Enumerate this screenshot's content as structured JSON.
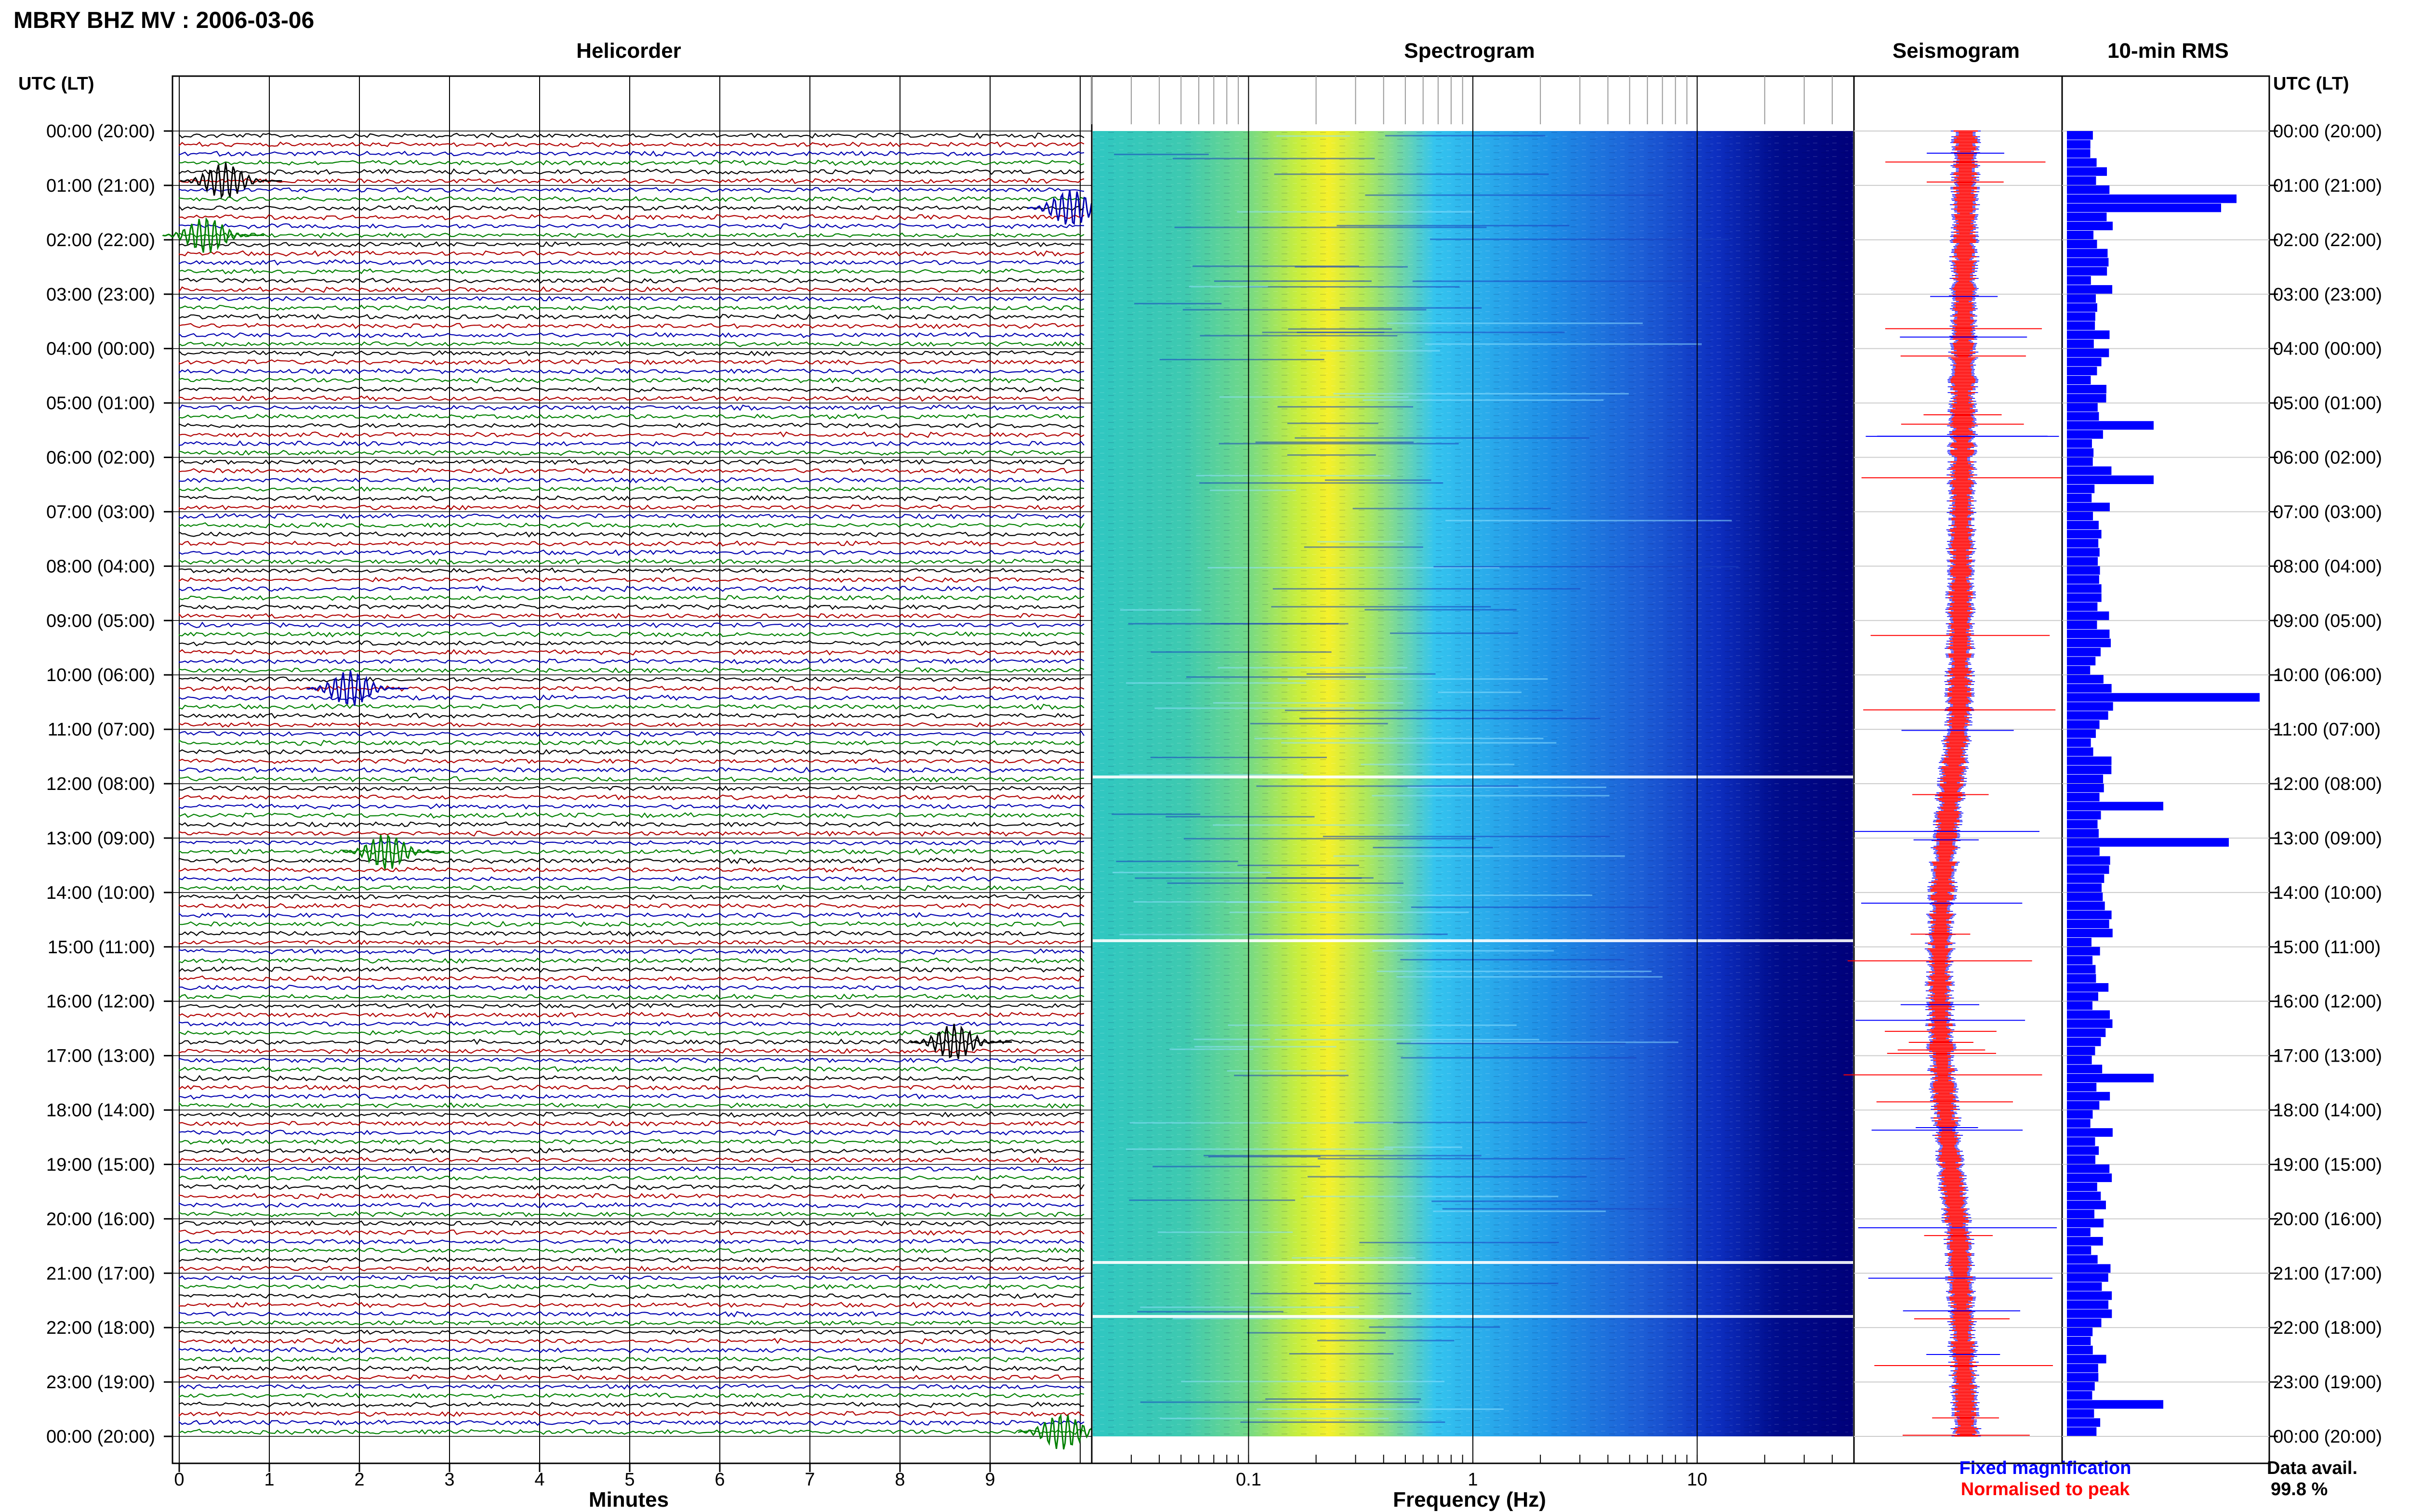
{
  "title": "MBRY BHZ MV : 2006-03-06",
  "panels": {
    "helicorder": "Helicorder",
    "spectrogram": "Spectrogram",
    "seismogram": "Seismogram",
    "rms": "10-min RMS"
  },
  "axis_header_left": "UTC (LT)",
  "axis_header_right": "UTC (LT)",
  "time_labels": [
    "00:00 (20:00)",
    "01:00 (21:00)",
    "02:00 (22:00)",
    "03:00 (23:00)",
    "04:00 (00:00)",
    "05:00 (01:00)",
    "06:00 (02:00)",
    "07:00 (03:00)",
    "08:00 (04:00)",
    "09:00 (05:00)",
    "10:00 (06:00)",
    "11:00 (07:00)",
    "12:00 (08:00)",
    "13:00 (09:00)",
    "14:00 (10:00)",
    "15:00 (11:00)",
    "16:00 (12:00)",
    "17:00 (13:00)",
    "18:00 (14:00)",
    "19:00 (15:00)",
    "20:00 (16:00)",
    "21:00 (17:00)",
    "22:00 (18:00)",
    "23:00 (19:00)",
    "00:00 (20:00)"
  ],
  "minutes_ticks": [
    "0",
    "1",
    "2",
    "3",
    "4",
    "5",
    "6",
    "7",
    "8",
    "9"
  ],
  "minutes_label": "Minutes",
  "freq_ticks": [
    "0.1",
    "1",
    "10"
  ],
  "freq_label": "Frequency (Hz)",
  "legend": {
    "fixed": "Fixed magnification",
    "normalised": "Normalised to peak",
    "fixed_color": "#0000ff",
    "normalised_color": "#ff0000"
  },
  "data_avail": {
    "label": "Data avail.",
    "value": "99.8 %"
  },
  "trace_colors": [
    "#000000",
    "#b00000",
    "#0000b0",
    "#008000"
  ],
  "chart_data": [
    {
      "type": "line",
      "panel": "helicorder",
      "xlabel": "Minutes",
      "xlim": [
        0,
        10
      ],
      "rows_per_hour": 6,
      "rows_count": 144,
      "events": [
        {
          "time": "00:50",
          "minute": 0.5,
          "color": "black",
          "amplitude": "large"
        },
        {
          "time": "01:20",
          "minute": 9.9,
          "color": "blue",
          "amplitude": "large"
        },
        {
          "time": "01:50",
          "minute": 0.3,
          "color": "green",
          "amplitude": "large"
        },
        {
          "time": "10:10",
          "minute": 1.9,
          "color": "blue",
          "amplitude": "large"
        },
        {
          "time": "13:10",
          "minute": 2.3,
          "color": "green",
          "amplitude": "large"
        },
        {
          "time": "16:40",
          "minute": 8.6,
          "color": "black",
          "amplitude": "large"
        },
        {
          "time": "23:50",
          "minute": 9.8,
          "color": "green",
          "amplitude": "large"
        }
      ]
    },
    {
      "type": "heatmap",
      "panel": "spectrogram",
      "xlabel": "Frequency (Hz)",
      "xscale": "log",
      "xlim": [
        0.02,
        50
      ],
      "peak_frequency_hz": 0.25,
      "colormap": "jet"
    },
    {
      "type": "line",
      "panel": "seismogram",
      "series": [
        {
          "name": "Fixed magnification",
          "color": "#0000ff"
        },
        {
          "name": "Normalised to peak",
          "color": "#ff0000"
        }
      ]
    },
    {
      "type": "bar",
      "panel": "rms",
      "title": "10-min RMS",
      "orientation": "horizontal",
      "color": "#0000ff",
      "categories_interval_min": 60,
      "values": [
        0.35,
        0.8,
        0.3,
        0.4,
        0.35,
        0.45,
        0.45,
        0.3,
        0.3,
        0.35,
        0.25,
        0.3,
        0.5,
        0.2,
        0.2,
        0.25,
        0.3,
        0.45,
        0.35,
        0.3,
        0.3,
        0.35,
        0.35,
        0.5
      ]
    }
  ]
}
